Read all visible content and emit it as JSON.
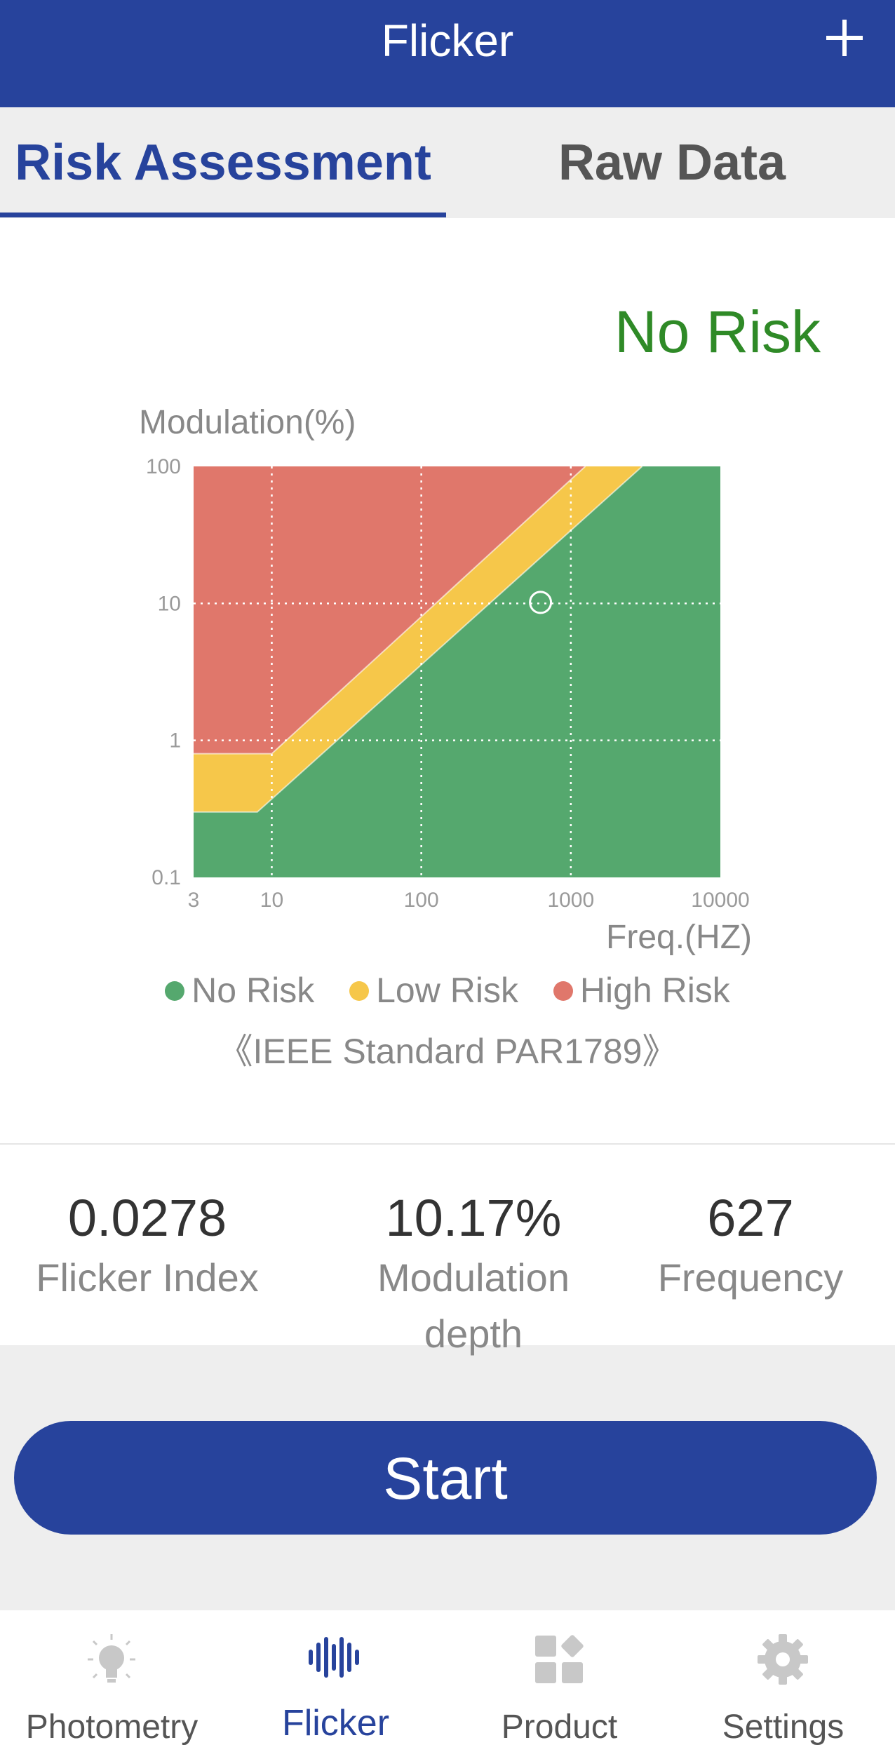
{
  "header": {
    "title": "Flicker",
    "add_icon": "plus-icon"
  },
  "tabs": [
    {
      "label": "Risk Assessment",
      "active": true
    },
    {
      "label": "Raw Data",
      "active": false
    }
  ],
  "assessment": {
    "result": "No Risk",
    "result_color": "#2f8a27"
  },
  "chart_data": {
    "type": "area",
    "xlabel": "Freq.(HZ)",
    "ylabel": "Modulation(%)",
    "x_scale": "log",
    "y_scale": "log",
    "xlim": [
      3,
      10000
    ],
    "ylim": [
      0.1,
      100
    ],
    "x_ticks": [
      "3",
      "10",
      "100",
      "1000",
      "10000"
    ],
    "y_ticks": [
      "100",
      "10",
      "1",
      "0.1"
    ],
    "grid": true,
    "regions": [
      {
        "name": "No Risk",
        "color": "#55a86e"
      },
      {
        "name": "Low Risk",
        "color": "#f6c74a"
      },
      {
        "name": "High Risk",
        "color": "#e0776b"
      }
    ],
    "low_risk_boundary": [
      [
        3,
        0.3
      ],
      [
        8,
        0.3
      ],
      [
        3000,
        100
      ]
    ],
    "high_risk_boundary": [
      [
        3,
        0.8
      ],
      [
        10,
        0.8
      ],
      [
        1250,
        100
      ]
    ],
    "measurement_point": {
      "x": 627,
      "y": 10.17
    }
  },
  "legend": [
    {
      "label": "No Risk",
      "color": "#55a86e"
    },
    {
      "label": "Low Risk",
      "color": "#f6c74a"
    },
    {
      "label": "High Risk",
      "color": "#e0776b"
    }
  ],
  "standard": "《IEEE Standard PAR1789》",
  "stats": [
    {
      "value": "0.0278",
      "label": "Flicker Index"
    },
    {
      "value": "10.17%",
      "label": "Modulation depth"
    },
    {
      "value": "627",
      "label": "Frequency"
    }
  ],
  "start_label": "Start",
  "nav": [
    {
      "label": "Photometry",
      "icon": "bulb-icon",
      "active": false
    },
    {
      "label": "Flicker",
      "icon": "waveform-icon",
      "active": true
    },
    {
      "label": "Product",
      "icon": "grid-icon",
      "active": false
    },
    {
      "label": "Settings",
      "icon": "gear-icon",
      "active": false
    }
  ]
}
